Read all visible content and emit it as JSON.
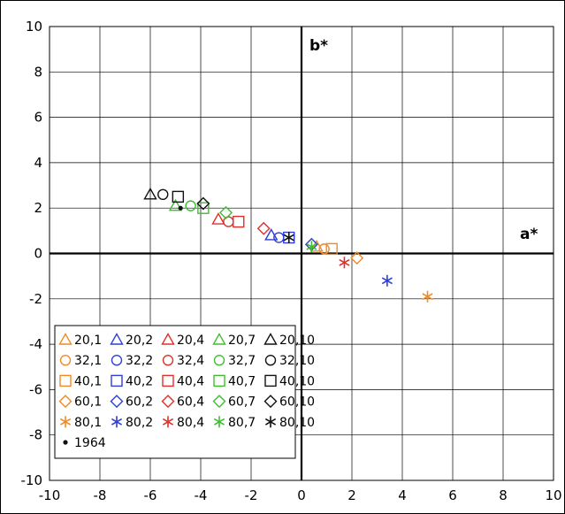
{
  "chart_data": {
    "type": "scatter",
    "xlabel": "a*",
    "ylabel": "b*",
    "xlim": [
      -10,
      10
    ],
    "ylim": [
      -10,
      10
    ],
    "x_ticks": [
      -10,
      -8,
      -6,
      -4,
      -2,
      0,
      2,
      4,
      6,
      8,
      10
    ],
    "y_ticks": [
      -10,
      -8,
      -6,
      -4,
      -2,
      0,
      2,
      4,
      6,
      8,
      10
    ],
    "grid": true,
    "legend_position": "bottom-left",
    "legend_columns": 5,
    "series": [
      {
        "name": "20,1",
        "marker": "triangle",
        "color": "#F08A24",
        "points": [
          [
            0.6,
            0.3
          ]
        ]
      },
      {
        "name": "20,2",
        "marker": "triangle",
        "color": "#2F3FD6",
        "points": [
          [
            -1.2,
            0.8
          ]
        ]
      },
      {
        "name": "20,4",
        "marker": "triangle",
        "color": "#E0302A",
        "points": [
          [
            -3.3,
            1.5
          ]
        ]
      },
      {
        "name": "20,7",
        "marker": "triangle",
        "color": "#3FBF2F",
        "points": [
          [
            -5.0,
            2.1
          ]
        ]
      },
      {
        "name": "20,10",
        "marker": "triangle",
        "color": "#111111",
        "points": [
          [
            -6.0,
            2.6
          ]
        ]
      },
      {
        "name": "32,1",
        "marker": "circle",
        "color": "#F08A24",
        "points": [
          [
            0.9,
            0.2
          ]
        ]
      },
      {
        "name": "32,2",
        "marker": "circle",
        "color": "#2F3FD6",
        "points": [
          [
            -0.9,
            0.7
          ]
        ]
      },
      {
        "name": "32,4",
        "marker": "circle",
        "color": "#E0302A",
        "points": [
          [
            -2.9,
            1.4
          ]
        ]
      },
      {
        "name": "32,7",
        "marker": "circle",
        "color": "#3FBF2F",
        "points": [
          [
            -4.4,
            2.1
          ]
        ]
      },
      {
        "name": "32,10",
        "marker": "circle",
        "color": "#111111",
        "points": [
          [
            -5.5,
            2.6
          ]
        ]
      },
      {
        "name": "40,1",
        "marker": "square",
        "color": "#F08A24",
        "points": [
          [
            1.2,
            0.2
          ]
        ]
      },
      {
        "name": "40,2",
        "marker": "square",
        "color": "#2F3FD6",
        "points": [
          [
            -0.5,
            0.7
          ]
        ]
      },
      {
        "name": "40,4",
        "marker": "square",
        "color": "#E0302A",
        "points": [
          [
            -2.5,
            1.4
          ]
        ]
      },
      {
        "name": "40,7",
        "marker": "square",
        "color": "#3FBF2F",
        "points": [
          [
            -3.9,
            2.0
          ]
        ]
      },
      {
        "name": "40,10",
        "marker": "square",
        "color": "#111111",
        "points": [
          [
            -4.9,
            2.5
          ]
        ]
      },
      {
        "name": "60,1",
        "marker": "diamond",
        "color": "#F08A24",
        "points": [
          [
            2.2,
            -0.2
          ]
        ]
      },
      {
        "name": "60,2",
        "marker": "diamond",
        "color": "#2F3FD6",
        "points": [
          [
            0.4,
            0.4
          ]
        ]
      },
      {
        "name": "60,4",
        "marker": "diamond",
        "color": "#E0302A",
        "points": [
          [
            -1.5,
            1.1
          ]
        ]
      },
      {
        "name": "60,7",
        "marker": "diamond",
        "color": "#3FBF2F",
        "points": [
          [
            -3.0,
            1.8
          ]
        ]
      },
      {
        "name": "60,10",
        "marker": "diamond",
        "color": "#111111",
        "points": [
          [
            -3.9,
            2.2
          ]
        ]
      },
      {
        "name": "80,1",
        "marker": "asterisk",
        "color": "#F08A24",
        "points": [
          [
            5.0,
            -1.9
          ]
        ]
      },
      {
        "name": "80,2",
        "marker": "asterisk",
        "color": "#2F3FD6",
        "points": [
          [
            3.4,
            -1.2
          ]
        ]
      },
      {
        "name": "80,4",
        "marker": "asterisk",
        "color": "#E0302A",
        "points": [
          [
            1.7,
            -0.4
          ]
        ]
      },
      {
        "name": "80,7",
        "marker": "asterisk",
        "color": "#3FBF2F",
        "points": [
          [
            0.4,
            0.3
          ]
        ]
      },
      {
        "name": "80,10",
        "marker": "asterisk",
        "color": "#111111",
        "points": [
          [
            -0.5,
            0.7
          ]
        ]
      },
      {
        "name": "1964",
        "marker": "dot",
        "color": "#111111",
        "points": [
          [
            -4.8,
            2.0
          ]
        ]
      }
    ]
  }
}
